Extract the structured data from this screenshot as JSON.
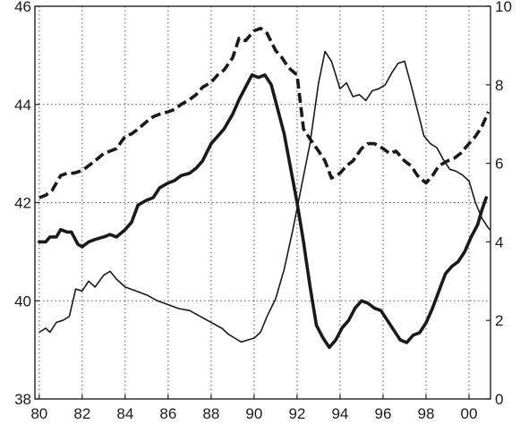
{
  "chart_data": {
    "type": "line",
    "title": "",
    "xlabel": "",
    "ylabel": "",
    "x_ticks": [
      "80",
      "82",
      "84",
      "86",
      "88",
      "90",
      "92",
      "94",
      "96",
      "98",
      "00"
    ],
    "xlim": [
      1979.8,
      2001.0
    ],
    "y_left": {
      "ticks": [
        "38",
        "40",
        "42",
        "44",
        "46"
      ],
      "range": [
        38,
        46
      ]
    },
    "y_right": {
      "ticks": [
        "0",
        "2",
        "4",
        "6",
        "8",
        "10"
      ],
      "range": [
        0,
        10
      ]
    },
    "grid": true,
    "series": [
      {
        "axis": "left",
        "style": "thick-solid",
        "points": [
          [
            1980.0,
            41.2
          ],
          [
            1980.3,
            41.2
          ],
          [
            1980.5,
            41.3
          ],
          [
            1980.8,
            41.3
          ],
          [
            1981.0,
            41.45
          ],
          [
            1981.3,
            41.4
          ],
          [
            1981.5,
            41.4
          ],
          [
            1981.8,
            41.15
          ],
          [
            1982.0,
            41.1
          ],
          [
            1982.3,
            41.2
          ],
          [
            1982.6,
            41.25
          ],
          [
            1983.0,
            41.3
          ],
          [
            1983.3,
            41.35
          ],
          [
            1983.6,
            41.3
          ],
          [
            1984.0,
            41.45
          ],
          [
            1984.3,
            41.6
          ],
          [
            1984.6,
            41.95
          ],
          [
            1985.0,
            42.05
          ],
          [
            1985.3,
            42.1
          ],
          [
            1985.6,
            42.3
          ],
          [
            1986.0,
            42.4
          ],
          [
            1986.3,
            42.45
          ],
          [
            1986.6,
            42.55
          ],
          [
            1987.0,
            42.6
          ],
          [
            1987.3,
            42.7
          ],
          [
            1987.6,
            42.85
          ],
          [
            1988.0,
            43.2
          ],
          [
            1988.3,
            43.35
          ],
          [
            1988.6,
            43.5
          ],
          [
            1989.0,
            43.8
          ],
          [
            1989.3,
            44.1
          ],
          [
            1989.6,
            44.35
          ],
          [
            1989.9,
            44.6
          ],
          [
            1990.2,
            44.55
          ],
          [
            1990.5,
            44.6
          ],
          [
            1990.8,
            44.4
          ],
          [
            1991.1,
            43.9
          ],
          [
            1991.4,
            43.4
          ],
          [
            1991.7,
            42.7
          ],
          [
            1992.0,
            42.0
          ],
          [
            1992.3,
            41.2
          ],
          [
            1992.6,
            40.3
          ],
          [
            1992.9,
            39.5
          ],
          [
            1993.2,
            39.25
          ],
          [
            1993.5,
            39.05
          ],
          [
            1993.8,
            39.2
          ],
          [
            1994.1,
            39.45
          ],
          [
            1994.4,
            39.6
          ],
          [
            1994.7,
            39.85
          ],
          [
            1995.0,
            40.0
          ],
          [
            1995.3,
            39.95
          ],
          [
            1995.6,
            39.85
          ],
          [
            1995.9,
            39.8
          ],
          [
            1996.2,
            39.6
          ],
          [
            1996.5,
            39.4
          ],
          [
            1996.8,
            39.2
          ],
          [
            1997.1,
            39.15
          ],
          [
            1997.4,
            39.3
          ],
          [
            1997.7,
            39.35
          ],
          [
            1998.0,
            39.55
          ],
          [
            1998.3,
            39.85
          ],
          [
            1998.6,
            40.2
          ],
          [
            1998.9,
            40.55
          ],
          [
            1999.2,
            40.7
          ],
          [
            1999.5,
            40.8
          ],
          [
            1999.8,
            41.0
          ],
          [
            2000.1,
            41.3
          ],
          [
            2000.4,
            41.55
          ],
          [
            2000.6,
            41.85
          ],
          [
            2000.8,
            42.1
          ]
        ]
      },
      {
        "axis": "left",
        "style": "thick-dashed",
        "points": [
          [
            1980.0,
            42.1
          ],
          [
            1980.3,
            42.15
          ],
          [
            1980.6,
            42.25
          ],
          [
            1981.0,
            42.55
          ],
          [
            1981.3,
            42.6
          ],
          [
            1981.6,
            42.6
          ],
          [
            1982.0,
            42.65
          ],
          [
            1982.3,
            42.75
          ],
          [
            1982.6,
            42.85
          ],
          [
            1983.0,
            43.0
          ],
          [
            1983.3,
            43.05
          ],
          [
            1983.6,
            43.1
          ],
          [
            1984.0,
            43.35
          ],
          [
            1984.3,
            43.4
          ],
          [
            1984.6,
            43.5
          ],
          [
            1985.0,
            43.65
          ],
          [
            1985.3,
            43.75
          ],
          [
            1985.6,
            43.8
          ],
          [
            1986.0,
            43.85
          ],
          [
            1986.3,
            43.9
          ],
          [
            1986.6,
            44.0
          ],
          [
            1987.0,
            44.1
          ],
          [
            1987.3,
            44.2
          ],
          [
            1987.6,
            44.35
          ],
          [
            1988.0,
            44.45
          ],
          [
            1988.3,
            44.6
          ],
          [
            1988.6,
            44.7
          ],
          [
            1989.0,
            44.95
          ],
          [
            1989.3,
            45.35
          ],
          [
            1989.6,
            45.3
          ],
          [
            1990.0,
            45.5
          ],
          [
            1990.3,
            45.55
          ],
          [
            1990.6,
            45.45
          ],
          [
            1991.0,
            45.1
          ],
          [
            1991.3,
            44.95
          ],
          [
            1991.6,
            44.75
          ],
          [
            1992.0,
            44.6
          ],
          [
            1992.3,
            43.5
          ],
          [
            1992.6,
            43.3
          ],
          [
            1993.0,
            43.05
          ],
          [
            1993.3,
            42.85
          ],
          [
            1993.6,
            42.5
          ],
          [
            1994.0,
            42.6
          ],
          [
            1994.3,
            42.75
          ],
          [
            1994.6,
            42.85
          ],
          [
            1995.0,
            43.1
          ],
          [
            1995.3,
            43.2
          ],
          [
            1995.6,
            43.2
          ],
          [
            1996.0,
            43.1
          ],
          [
            1996.3,
            43.0
          ],
          [
            1996.6,
            43.05
          ],
          [
            1997.0,
            42.85
          ],
          [
            1997.3,
            42.75
          ],
          [
            1997.6,
            42.55
          ],
          [
            1998.0,
            42.4
          ],
          [
            1998.3,
            42.55
          ],
          [
            1998.6,
            42.75
          ],
          [
            1999.0,
            42.85
          ],
          [
            1999.3,
            42.9
          ],
          [
            1999.6,
            43.0
          ],
          [
            2000.0,
            43.2
          ],
          [
            2000.3,
            43.35
          ],
          [
            2000.6,
            43.55
          ],
          [
            2000.9,
            43.85
          ]
        ]
      },
      {
        "axis": "right",
        "style": "thin-solid",
        "points": [
          [
            1980.0,
            1.7
          ],
          [
            1980.3,
            1.8
          ],
          [
            1980.5,
            1.7
          ],
          [
            1980.8,
            1.95
          ],
          [
            1981.1,
            2.0
          ],
          [
            1981.4,
            2.1
          ],
          [
            1981.7,
            2.8
          ],
          [
            1982.0,
            2.75
          ],
          [
            1982.3,
            3.0
          ],
          [
            1982.6,
            2.85
          ],
          [
            1983.0,
            3.15
          ],
          [
            1983.3,
            3.25
          ],
          [
            1983.6,
            3.05
          ],
          [
            1984.0,
            2.85
          ],
          [
            1984.5,
            2.75
          ],
          [
            1985.0,
            2.65
          ],
          [
            1985.5,
            2.5
          ],
          [
            1986.0,
            2.4
          ],
          [
            1986.5,
            2.3
          ],
          [
            1987.0,
            2.25
          ],
          [
            1987.5,
            2.1
          ],
          [
            1988.0,
            1.95
          ],
          [
            1988.5,
            1.8
          ],
          [
            1988.8,
            1.65
          ],
          [
            1989.1,
            1.55
          ],
          [
            1989.4,
            1.45
          ],
          [
            1989.7,
            1.5
          ],
          [
            1990.0,
            1.55
          ],
          [
            1990.3,
            1.7
          ],
          [
            1990.6,
            2.1
          ],
          [
            1991.0,
            2.55
          ],
          [
            1991.4,
            3.3
          ],
          [
            1991.8,
            4.3
          ],
          [
            1992.2,
            5.4
          ],
          [
            1992.6,
            6.5
          ],
          [
            1993.0,
            8.05
          ],
          [
            1993.3,
            8.85
          ],
          [
            1993.6,
            8.6
          ],
          [
            1994.0,
            7.9
          ],
          [
            1994.3,
            8.05
          ],
          [
            1994.6,
            7.7
          ],
          [
            1994.9,
            7.75
          ],
          [
            1995.2,
            7.6
          ],
          [
            1995.5,
            7.85
          ],
          [
            1995.8,
            7.9
          ],
          [
            1996.1,
            8.0
          ],
          [
            1996.4,
            8.3
          ],
          [
            1996.7,
            8.55
          ],
          [
            1997.0,
            8.6
          ],
          [
            1997.3,
            8.0
          ],
          [
            1997.6,
            7.35
          ],
          [
            1997.9,
            6.7
          ],
          [
            1998.2,
            6.5
          ],
          [
            1998.5,
            6.4
          ],
          [
            1998.8,
            6.1
          ],
          [
            1999.1,
            5.85
          ],
          [
            1999.4,
            5.8
          ],
          [
            1999.7,
            5.7
          ],
          [
            2000.0,
            5.55
          ],
          [
            2000.3,
            5.0
          ],
          [
            2000.6,
            4.6
          ],
          [
            2000.9,
            4.35
          ],
          [
            2001.0,
            4.3
          ]
        ]
      }
    ]
  }
}
